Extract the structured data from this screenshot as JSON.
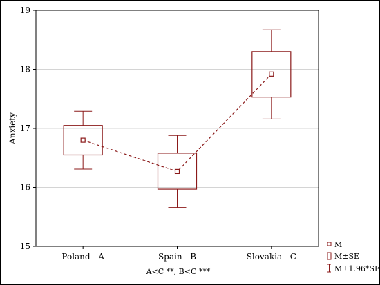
{
  "chart_data": {
    "type": "box",
    "categories": [
      "Poland - A",
      "Spain - B",
      "Slovakia - C"
    ],
    "series": [
      {
        "name": "M",
        "values": [
          16.8,
          16.27,
          17.92
        ]
      }
    ],
    "se_range": [
      [
        16.55,
        17.05
      ],
      [
        15.97,
        16.58
      ],
      [
        17.53,
        18.3
      ]
    ],
    "ci_range": [
      [
        16.31,
        17.29
      ],
      [
        15.66,
        16.88
      ],
      [
        17.16,
        18.67
      ]
    ],
    "ylabel": "Anxiety",
    "xlabel": "",
    "ylim": [
      15,
      19
    ],
    "yticks": [
      "15",
      "16",
      "17",
      "18",
      "19"
    ],
    "note": "A<C **, B<C ***",
    "legend": [
      "M",
      "M±SE",
      "M±1.96*SE"
    ],
    "legend_position": "bottom-right",
    "grid": true,
    "color": "#8b1a1a"
  }
}
